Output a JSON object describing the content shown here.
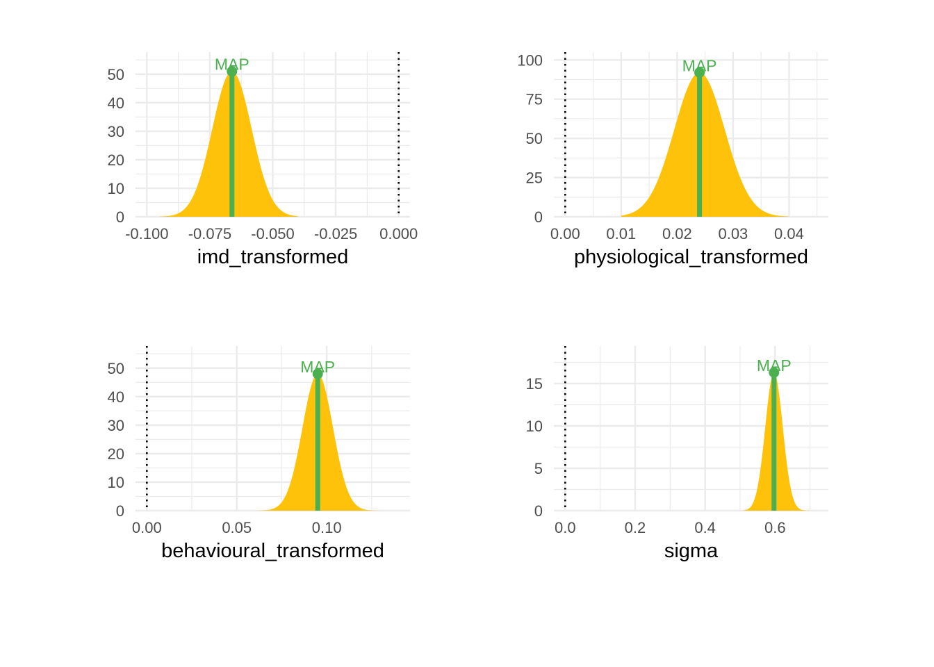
{
  "colors": {
    "density": "#FFC20A",
    "map": "#4CAF50",
    "grid": "#EBEBEB",
    "null_line": "#000000"
  },
  "chart_data": [
    {
      "type": "area",
      "xlabel": "imd_transformed",
      "xlim": [
        -0.1,
        0.0
      ],
      "ylim": [
        0,
        55
      ],
      "x_ticks": [
        -0.1,
        -0.075,
        -0.05,
        -0.025,
        0.0
      ],
      "x_tick_labels": [
        "-0.100",
        "-0.075",
        "-0.050",
        "-0.025",
        "0.000"
      ],
      "y_ticks": [
        0,
        10,
        20,
        30,
        40,
        50
      ],
      "y_tick_labels": [
        "0",
        "10",
        "20",
        "30",
        "40",
        "50"
      ],
      "density": {
        "mean": -0.0662,
        "sd": 0.0078,
        "peak": 51,
        "range": [
          -0.095,
          -0.04
        ]
      },
      "map": {
        "label": "MAP",
        "x": -0.0662,
        "y": 51
      },
      "null_value": 0.0,
      "grid": true
    },
    {
      "type": "area",
      "xlabel": "physiological_transformed",
      "xlim": [
        0.0,
        0.045
      ],
      "ylim": [
        0,
        100
      ],
      "x_ticks": [
        0.0,
        0.01,
        0.02,
        0.03,
        0.04
      ],
      "x_tick_labels": [
        "0.00",
        "0.01",
        "0.02",
        "0.03",
        "0.04"
      ],
      "y_ticks": [
        0,
        25,
        50,
        75,
        100
      ],
      "y_tick_labels": [
        "0",
        "25",
        "50",
        "75",
        "100"
      ],
      "density": {
        "mean": 0.024,
        "sd": 0.0045,
        "peak": 92,
        "range": [
          0.01,
          0.04
        ]
      },
      "map": {
        "label": "MAP",
        "x": 0.024,
        "y": 92
      },
      "null_value": 0.0,
      "grid": true
    },
    {
      "type": "area",
      "xlabel": "behavioural_transformed",
      "xlim": [
        0.0,
        0.14
      ],
      "ylim": [
        0,
        55
      ],
      "x_ticks": [
        0.0,
        0.05,
        0.1
      ],
      "x_tick_labels": [
        "0.00",
        "0.05",
        "0.10"
      ],
      "y_ticks": [
        0,
        10,
        20,
        30,
        40,
        50
      ],
      "y_tick_labels": [
        "0",
        "10",
        "20",
        "30",
        "40",
        "50"
      ],
      "density": {
        "mean": 0.095,
        "sd": 0.0085,
        "peak": 48,
        "range": [
          0.057,
          0.136
        ]
      },
      "map": {
        "label": "MAP",
        "x": 0.095,
        "y": 48
      },
      "null_value": 0.0,
      "grid": true
    },
    {
      "type": "area",
      "xlabel": "sigma",
      "xlim": [
        0.0,
        0.72
      ],
      "ylim": [
        0,
        18.5
      ],
      "x_ticks": [
        0.0,
        0.2,
        0.4,
        0.6
      ],
      "x_tick_labels": [
        "0.0",
        "0.2",
        "0.4",
        "0.6"
      ],
      "y_ticks": [
        0,
        5,
        10,
        15
      ],
      "y_tick_labels": [
        "0",
        "5",
        "10",
        "15"
      ],
      "density": {
        "mean": 0.597,
        "sd": 0.025,
        "peak": 16.3,
        "range": [
          0.51,
          0.7
        ]
      },
      "map": {
        "label": "MAP",
        "x": 0.597,
        "y": 16.3
      },
      "null_value": 0.0,
      "grid": true
    }
  ]
}
